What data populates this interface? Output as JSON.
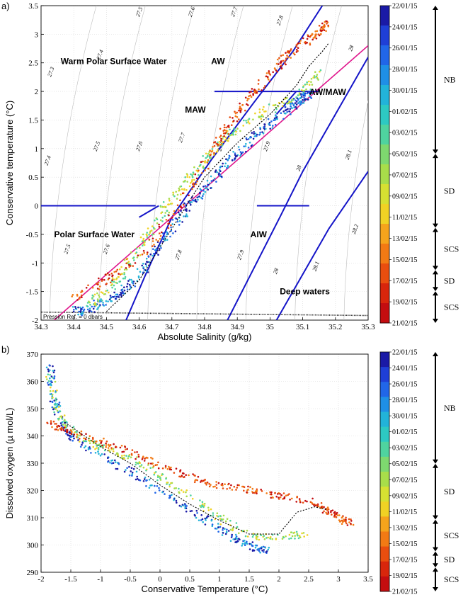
{
  "figure": {
    "panel_a_label": "a)",
    "panel_b_label": "b)"
  },
  "chart_data": [
    {
      "type": "scatter",
      "panel": "a)",
      "xlabel": "Absolute Salinity (g/kg)",
      "ylabel": "Conservative temperature (°C)",
      "xlim": [
        34.3,
        35.3
      ],
      "ylim": [
        -2,
        3.5
      ],
      "xticks": [
        "34.3",
        "34.4",
        "34.5",
        "34.6",
        "34.7",
        "34.8",
        "34.9",
        "35",
        "35.1",
        "35.2",
        "35.3"
      ],
      "yticks": [
        "-2",
        "-1.5",
        "-1",
        "-0.5",
        "0",
        "0.5",
        "1",
        "1.5",
        "2",
        "2.5",
        "3",
        "3.5"
      ],
      "grid": true,
      "reference_note": "Pression Ref. = 0 dbars",
      "water_masses": [
        {
          "label": "Warm Polar Surface Water",
          "sa": 34.36,
          "ct": 2.48
        },
        {
          "label": "AW",
          "sa": 34.82,
          "ct": 2.48
        },
        {
          "label": "AW/MAW",
          "sa": 35.12,
          "ct": 1.94
        },
        {
          "label": "MAW",
          "sa": 34.74,
          "ct": 1.63
        },
        {
          "label": "Polar Surface Water",
          "sa": 34.34,
          "ct": -0.55
        },
        {
          "label": "AIW",
          "sa": 34.94,
          "ct": -0.55
        },
        {
          "label": "Deep waters",
          "sa": 35.03,
          "ct": -1.55
        }
      ],
      "isopycnal_labels": [
        {
          "text": "27.3",
          "sa": 34.33,
          "ct": 2.25
        },
        {
          "text": "27.4",
          "sa": 34.48,
          "ct": 2.55
        },
        {
          "text": "27.5",
          "sa": 34.6,
          "ct": 3.3
        },
        {
          "text": "27.6",
          "sa": 34.76,
          "ct": 3.3
        },
        {
          "text": "27.7",
          "sa": 34.89,
          "ct": 3.3
        },
        {
          "text": "27.8",
          "sa": 35.03,
          "ct": 3.15
        },
        {
          "text": "28",
          "sa": 35.25,
          "ct": 2.7
        },
        {
          "text": "27.4",
          "sa": 34.32,
          "ct": 0.7
        },
        {
          "text": "27.5",
          "sa": 34.47,
          "ct": 0.95
        },
        {
          "text": "27.6",
          "sa": 34.6,
          "ct": 0.95
        },
        {
          "text": "27.7",
          "sa": 34.73,
          "ct": 1.1
        },
        {
          "text": "27.8",
          "sa": 34.85,
          "ct": 0.95
        },
        {
          "text": "27.9",
          "sa": 34.99,
          "ct": 0.95
        },
        {
          "text": "28",
          "sa": 35.09,
          "ct": 0.6
        },
        {
          "text": "28.1",
          "sa": 35.24,
          "ct": 0.8
        },
        {
          "text": "27.5",
          "sa": 34.38,
          "ct": -0.85
        },
        {
          "text": "27.6",
          "sa": 34.5,
          "ct": -0.85
        },
        {
          "text": "27.8",
          "sa": 34.72,
          "ct": -0.95
        },
        {
          "text": "27.9",
          "sa": 34.91,
          "ct": -0.95
        },
        {
          "text": "28",
          "sa": 35.02,
          "ct": -1.2
        },
        {
          "text": "28.1",
          "sa": 35.14,
          "ct": -1.15
        },
        {
          "text": "28.2",
          "sa": 35.26,
          "ct": -0.5
        }
      ],
      "boundaries": [
        {
          "name": "freezing-line",
          "type": "dotted",
          "points": [
            [
              34.3,
              -1.86
            ],
            [
              35.3,
              -1.92
            ]
          ]
        },
        {
          "name": "mixing-line",
          "type": "magenta",
          "points": [
            [
              34.34,
              -2
            ],
            [
              35.3,
              2.8
            ]
          ]
        },
        {
          "name": "maw-zero",
          "points": [
            [
              34.3,
              0
            ],
            [
              34.65,
              0
            ]
          ]
        },
        {
          "name": "aw-two",
          "points": [
            [
              34.83,
              2
            ],
            [
              35.15,
              2
            ]
          ]
        },
        {
          "name": "aiw-zero",
          "points": [
            [
              34.96,
              0
            ],
            [
              35.12,
              0
            ]
          ]
        }
      ],
      "series": [
        {
          "name": "NB",
          "date_range": [
            "22/01/15",
            "05/02/15"
          ],
          "points": [
            [
              34.4,
              -1.85
            ],
            [
              34.45,
              -1.8
            ],
            [
              34.5,
              -1.65
            ],
            [
              34.55,
              -1.5
            ],
            [
              34.6,
              -1.2
            ],
            [
              34.65,
              -0.8
            ],
            [
              34.7,
              -0.4
            ],
            [
              34.75,
              0.0
            ],
            [
              34.8,
              0.3
            ],
            [
              34.85,
              0.6
            ],
            [
              34.9,
              0.9
            ],
            [
              34.95,
              1.2
            ],
            [
              35.0,
              1.45
            ],
            [
              35.05,
              1.65
            ],
            [
              35.08,
              1.8
            ],
            [
              35.1,
              1.9
            ],
            [
              35.12,
              1.95
            ]
          ]
        },
        {
          "name": "SD",
          "date_range": [
            "05/02/15",
            "12/02/15"
          ],
          "points": [
            [
              34.45,
              -1.7
            ],
            [
              34.5,
              -1.5
            ],
            [
              34.55,
              -1.2
            ],
            [
              34.6,
              -0.7
            ],
            [
              34.65,
              -0.3
            ],
            [
              34.7,
              0.1
            ],
            [
              34.75,
              0.45
            ],
            [
              34.8,
              0.8
            ],
            [
              34.85,
              1.1
            ],
            [
              34.9,
              1.35
            ],
            [
              35.0,
              1.7
            ],
            [
              35.1,
              2.0
            ],
            [
              35.15,
              2.3
            ]
          ]
        },
        {
          "name": "SCS",
          "date_range": [
            "13/02/15",
            "21/02/15"
          ],
          "points": [
            [
              34.4,
              -1.6
            ],
            [
              34.5,
              -1.3
            ],
            [
              34.6,
              -0.9
            ],
            [
              34.7,
              -0.2
            ],
            [
              34.8,
              0.7
            ],
            [
              34.85,
              1.2
            ],
            [
              34.9,
              1.6
            ],
            [
              34.95,
              2.0
            ],
            [
              35.0,
              2.3
            ],
            [
              35.05,
              2.6
            ],
            [
              35.1,
              2.85
            ],
            [
              35.15,
              3.05
            ],
            [
              35.18,
              3.2
            ]
          ]
        }
      ]
    },
    {
      "type": "scatter",
      "panel": "b)",
      "xlabel": "Conservative Temperature (°C)",
      "ylabel": "Dissolved oxygen (µ mol/L)",
      "xlim": [
        -2,
        3.5
      ],
      "ylim": [
        290,
        370
      ],
      "xticks": [
        "-2",
        "-1.5",
        "-1",
        "-0.5",
        "0",
        "0.5",
        "1",
        "1.5",
        "2",
        "2.5",
        "3",
        "3.5"
      ],
      "yticks": [
        "290",
        "300",
        "310",
        "320",
        "330",
        "340",
        "350",
        "360",
        "370"
      ],
      "grid": true,
      "series": [
        {
          "name": "NB",
          "points": [
            [
              -1.85,
              366
            ],
            [
              -1.8,
              355
            ],
            [
              -1.7,
              347
            ],
            [
              -1.5,
              340
            ],
            [
              -1.0,
              333
            ],
            [
              -0.5,
              327
            ],
            [
              0.0,
              320
            ],
            [
              0.5,
              313
            ],
            [
              1.0,
              306
            ],
            [
              1.3,
              302
            ],
            [
              1.6,
              299
            ],
            [
              1.8,
              298
            ]
          ]
        },
        {
          "name": "SD",
          "points": [
            [
              -1.85,
              362
            ],
            [
              -1.7,
              348
            ],
            [
              -1.4,
              340
            ],
            [
              -1.0,
              336
            ],
            [
              -0.5,
              332
            ],
            [
              0.0,
              325
            ],
            [
              0.5,
              318
            ],
            [
              1.0,
              310
            ],
            [
              1.5,
              303
            ],
            [
              2.0,
              303
            ],
            [
              2.5,
              304
            ]
          ]
        },
        {
          "name": "SCS",
          "points": [
            [
              -1.85,
              345
            ],
            [
              -1.6,
              342
            ],
            [
              -1.0,
              338
            ],
            [
              -0.5,
              334
            ],
            [
              0.0,
              329
            ],
            [
              0.5,
              325
            ],
            [
              1.0,
              322
            ],
            [
              1.5,
              320
            ],
            [
              2.0,
              318
            ],
            [
              2.5,
              316
            ],
            [
              2.8,
              313
            ],
            [
              3.0,
              310
            ],
            [
              3.2,
              308
            ]
          ]
        }
      ]
    }
  ],
  "colorbar": {
    "dates": [
      "22/01/15",
      "24/01/15",
      "26/01/15",
      "28/01/15",
      "30/01/15",
      "01/02/15",
      "03/02/15",
      "05/02/15",
      "07/02/15",
      "09/02/15",
      "11/02/15",
      "13/02/15",
      "15/02/15",
      "17/02/15",
      "19/02/15",
      "21/02/15"
    ],
    "colors": [
      "#1a1aa6",
      "#1f3fd6",
      "#2166e8",
      "#1f8fe6",
      "#22b3d9",
      "#2dc9c2",
      "#4fd39f",
      "#7ed86f",
      "#a8dd4a",
      "#d6e032",
      "#f0d224",
      "#f5a41c",
      "#f27a14",
      "#e94e0f",
      "#d8260c",
      "#c40d10"
    ],
    "phases": [
      {
        "label": "NB",
        "from": "22/01/15",
        "to": "05/02/15"
      },
      {
        "label": "SD",
        "from": "05/02/15",
        "to": "12/02/15"
      },
      {
        "label": "SCS",
        "from": "12/02/15",
        "to": "16/02/15"
      },
      {
        "label": "SD",
        "from": "16/02/15",
        "to": "18/02/15"
      },
      {
        "label": "SCS",
        "from": "18/02/15",
        "to": "21/02/15"
      }
    ]
  }
}
